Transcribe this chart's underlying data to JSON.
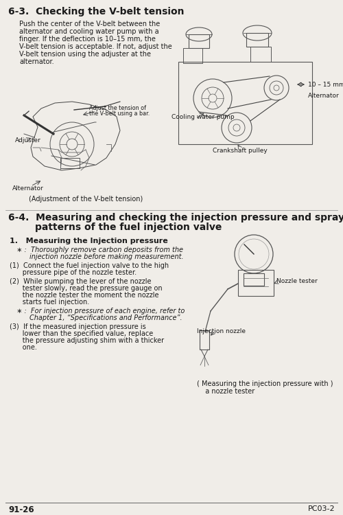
{
  "bg_color": "#f0ede8",
  "section1_title": "6-3.  Checking the V-belt tension",
  "section1_body": "Push the center of the V-belt between the\nalternator and cooling water pump with a\nfinger. If the deflection is 10–15 mm, the\nV-belt tension is acceptable. If not, adjust the\nV-belt tension using the adjuster at the\nalternator.",
  "caption1": "(Adjustment of the V-belt tension)",
  "section2_title_line1": "6-4.  Measuring and checking the injection pressure and spray",
  "section2_title_line2": "        patterns of the fuel injection valve",
  "sub1_title": "1.   Measuring the Injection pressure",
  "sub1_star_line1": "  ∗ :  Thoroughly remove carbon deposits from the",
  "sub1_star_line2": "        injection nozzle before making measurement.",
  "item1_line1": "(1)  Connect the fuel injection valve to the high",
  "item1_line2": "      pressure pipe of the nozzle tester.",
  "item2_line1": "(2)  While pumping the lever of the nozzle",
  "item2_line2": "      tester slowly, read the pressure gauge on",
  "item2_line3": "      the nozzle tester the moment the nozzle",
  "item2_line4": "      starts fuel injection.",
  "star2_line1": "  ∗ :  For injection pressure of each engine, refer to",
  "star2_line2": "        Chapter 1, “Specifications and Performance”.",
  "item3_line1": "(3)  If the measured injection pressure is",
  "item3_line2": "      lower than the specified value, replace",
  "item3_line3": "      the pressure adjusting shim with a thicker",
  "item3_line4": "      one.",
  "caption2_line1": "( Measuring the injection pressure with )",
  "caption2_line2": "  a nozzle tester",
  "footer_left": "91-26",
  "footer_right": "PC03-2",
  "label_adjuster": "Adjuster",
  "label_adjust_tension_1": "Adjust the tension of",
  "label_adjust_tension_2": "the V-belt using a bar.",
  "label_alternator1": "Alternator",
  "label_alternator2": "Alternator",
  "label_cooling": "Cooling water pump",
  "label_crankshaft": "Crankshaft pulley",
  "label_10_15": "10 – 15 mm",
  "label_nozzle_tester": "Nozzle tester",
  "label_injection_nozzle": "Injection nozzle"
}
